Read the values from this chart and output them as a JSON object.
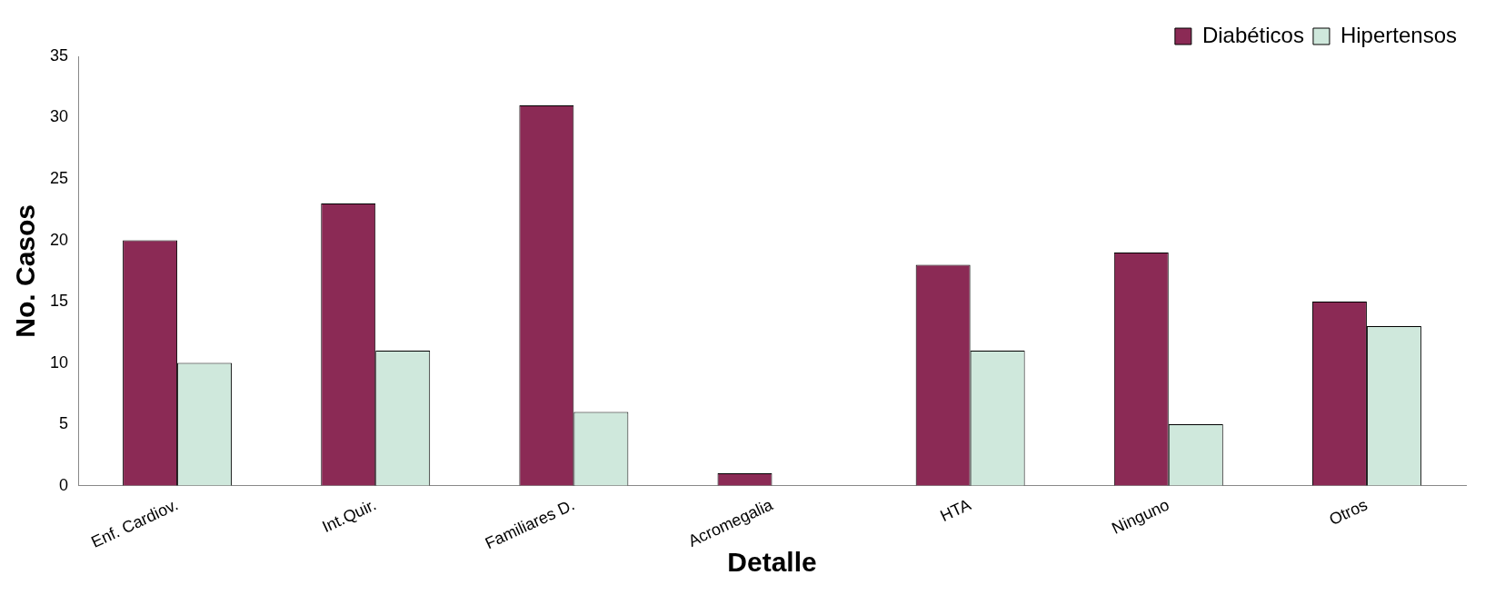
{
  "chart_data": {
    "type": "bar",
    "xlabel": "Detalle",
    "ylabel": "No. Casos",
    "categories": [
      "Enf. Cardiov.",
      "Int.Quir.",
      "Familiares D.",
      "Acromegalia",
      "HTA",
      "Ninguno",
      "Otros"
    ],
    "series": [
      {
        "name": "Diabéticos",
        "color": "#8b2a55",
        "values": [
          20,
          23,
          31,
          1,
          18,
          19,
          15
        ]
      },
      {
        "name": "Hipertensos",
        "color": "#cfe8dc",
        "values": [
          10,
          11,
          6,
          0,
          11,
          5,
          13
        ]
      }
    ],
    "ylim": [
      0,
      35
    ],
    "yticks": [
      0,
      5,
      10,
      15,
      20,
      25,
      30,
      35
    ],
    "grid": false,
    "legend": "top right"
  }
}
